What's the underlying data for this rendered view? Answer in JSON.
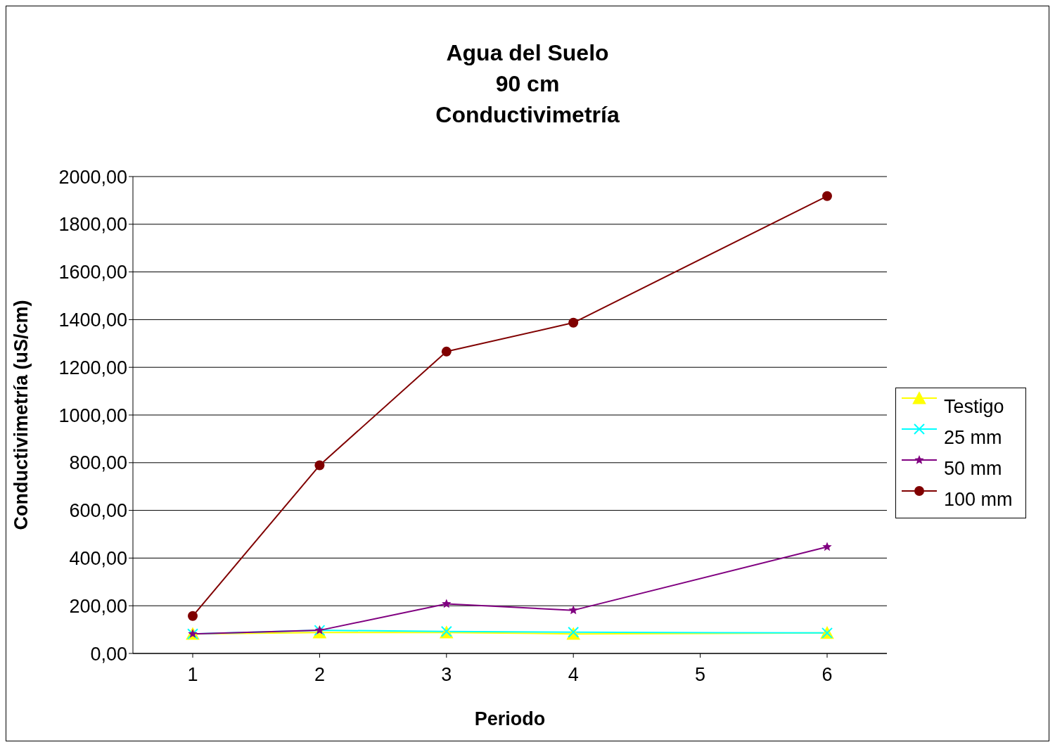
{
  "chart_data": {
    "type": "line",
    "title": "Agua del Suelo\n90 cm\nConductivimetría",
    "xlabel": "Periodo",
    "ylabel": "Conductivimetría (uS/cm)",
    "categories": [
      "1",
      "2",
      "3",
      "4",
      "5",
      "6"
    ],
    "series": [
      {
        "name": "Testigo",
        "color": "#ffff00",
        "marker": "triangle",
        "values": [
          82,
          88,
          88,
          82,
          null,
          86
        ]
      },
      {
        "name": "25 mm",
        "color": "#00ffff",
        "marker": "cross",
        "values": [
          82,
          97,
          92,
          89,
          null,
          86
        ]
      },
      {
        "name": "50 mm",
        "color": "#800080",
        "marker": "star",
        "values": [
          82,
          97,
          208,
          181,
          null,
          447
        ]
      },
      {
        "name": "100 mm",
        "color": "#800000",
        "marker": "circle",
        "values": [
          157,
          789,
          1266,
          1387,
          null,
          1918
        ]
      }
    ],
    "ylim": [
      0,
      2000
    ],
    "yticks": [
      {
        "value": 0,
        "label": "0,00"
      },
      {
        "value": 200,
        "label": "200,00"
      },
      {
        "value": 400,
        "label": "400,00"
      },
      {
        "value": 600,
        "label": "600,00"
      },
      {
        "value": 800,
        "label": "800,00"
      },
      {
        "value": 1000,
        "label": "1000,00"
      },
      {
        "value": 1200,
        "label": "1200,00"
      },
      {
        "value": 1400,
        "label": "1400,00"
      },
      {
        "value": 1600,
        "label": "1600,00"
      },
      {
        "value": 1800,
        "label": "1800,00"
      },
      {
        "value": 2000,
        "label": "2000,00"
      }
    ],
    "grid": "y",
    "legend": "right",
    "line_style": "solid"
  }
}
